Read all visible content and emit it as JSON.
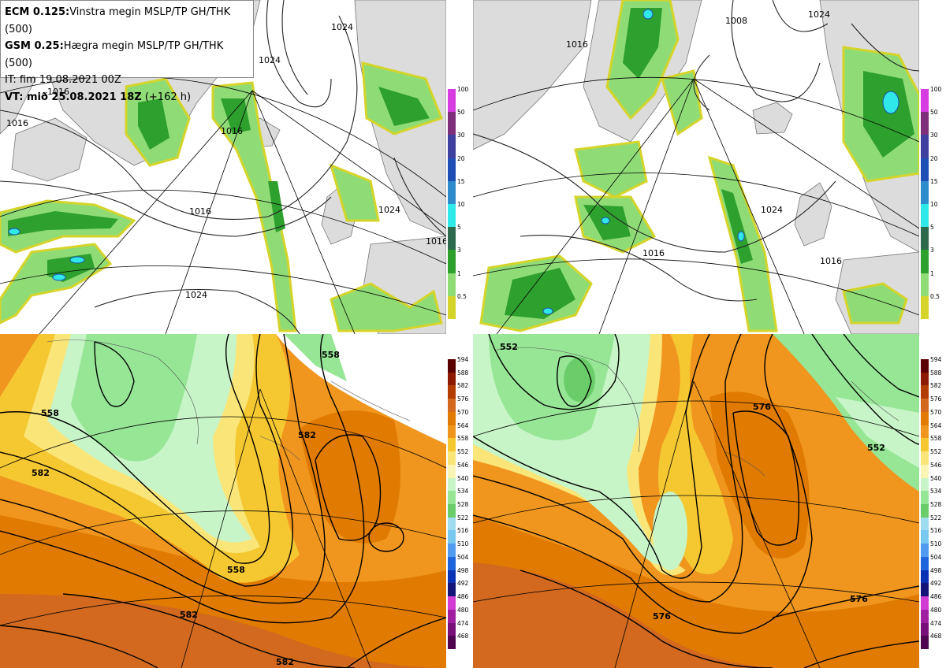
{
  "info": {
    "line1_bold": "ECM 0.125:",
    "line1": "Vinstra megin MSLP/TP GH/THK (500)",
    "line2_bold": "GSM 0.25:",
    "line2": "Hægra megin MSLP/TP GH/THK (500)",
    "line3": "IT: fim 19.08.2021 00Z",
    "line4_bold": "VT: mið 25.08.2021 18Z",
    "line4": "(+162 h)"
  },
  "precip_legend": {
    "labels": [
      "100",
      "50",
      "30",
      "20",
      "15",
      "10",
      "5",
      "3",
      "1",
      "0.5"
    ],
    "colors": [
      "#d63ce0",
      "#7f2f7a",
      "#3f3f9f",
      "#1f4fb5",
      "#2f8ccc",
      "#2fe8e8",
      "#2d6b4c",
      "#2ea02e",
      "#8fdc77",
      "#d4d42a"
    ]
  },
  "thickness_legend": {
    "labels": [
      "594",
      "588",
      "582",
      "576",
      "570",
      "564",
      "558",
      "552",
      "546",
      "540",
      "534",
      "528",
      "522",
      "516",
      "510",
      "504",
      "498",
      "492",
      "486",
      "480",
      "474",
      "468"
    ],
    "colors": [
      "#5a0000",
      "#8c1a00",
      "#b33c00",
      "#d2691e",
      "#e07a00",
      "#f0961e",
      "#f5c832",
      "#fae678",
      "#faf5b4",
      "#c8f5c8",
      "#96e696",
      "#6acd6a",
      "#a0dcf0",
      "#78c8f0",
      "#509bf0",
      "#1e64dc",
      "#0a32b4",
      "#141478",
      "#d23cd2",
      "#a01ea0",
      "#780f78",
      "#500550"
    ]
  },
  "map_labels": {
    "ecm_mslp": [
      "1016",
      "1024",
      "1016",
      "1016",
      "1024",
      "1024",
      "1024",
      "1016",
      "1016"
    ],
    "gsm_mslp": [
      "1008",
      "1024",
      "1016",
      "1024",
      "1016",
      "1016"
    ],
    "ecm_gh": [
      "558",
      "582",
      "558",
      "582",
      "582",
      "558",
      "582"
    ],
    "gsm_gh": [
      "552",
      "576",
      "552",
      "576",
      "576"
    ]
  }
}
